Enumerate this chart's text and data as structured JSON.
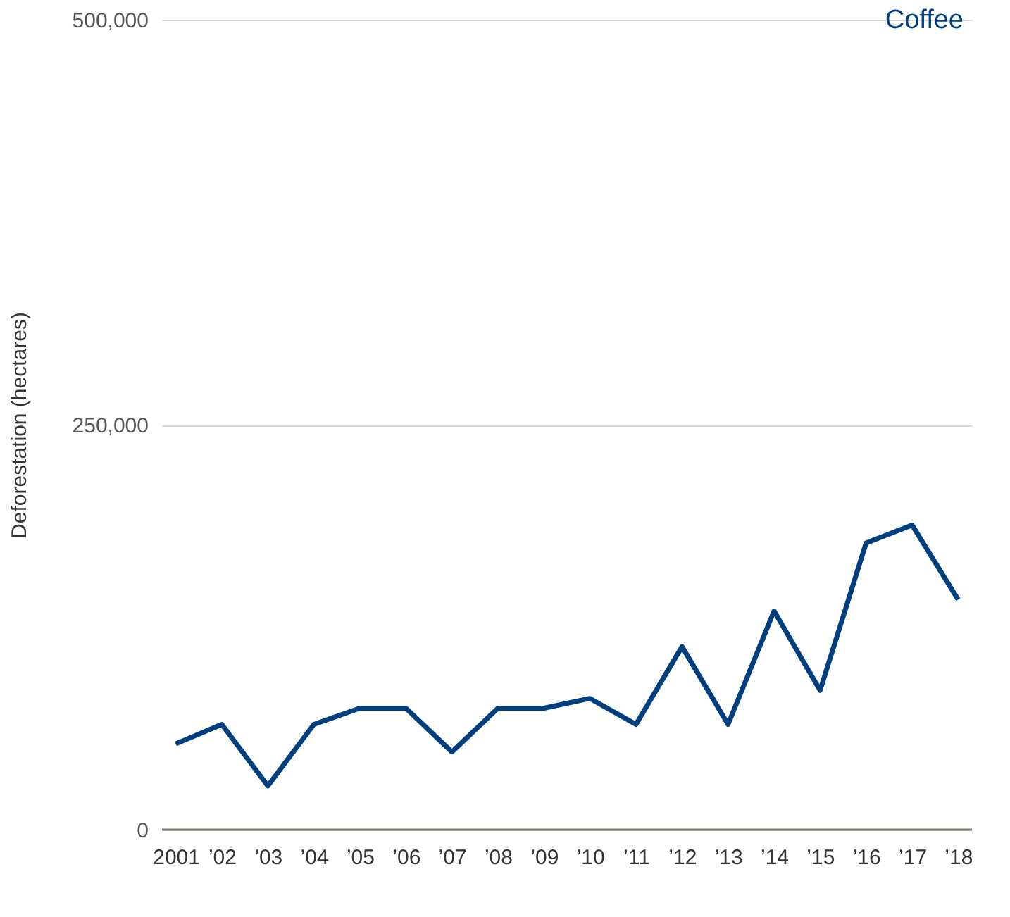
{
  "chart_data": {
    "type": "line",
    "ylabel": "Deforestation (hectares)",
    "categories": [
      "2001",
      "’02",
      "’03",
      "’04",
      "’05",
      "’06",
      "’07",
      "’08",
      "’09",
      "’10",
      "’11",
      "’12",
      "’13",
      "’14",
      "’15",
      "’16",
      "’17",
      "’18"
    ],
    "series": [
      {
        "name": "Coffee",
        "color": "#003f7d",
        "values": [
          53000,
          65000,
          27000,
          65000,
          75000,
          75000,
          48000,
          75000,
          75000,
          81000,
          65000,
          113000,
          65000,
          135000,
          86000,
          177000,
          188000,
          142000
        ]
      }
    ],
    "ylim": [
      0,
      500000
    ],
    "yticks": [
      0,
      {
        "value": 250000,
        "label": "250,000"
      },
      {
        "value": 500000,
        "label": "500,000"
      }
    ],
    "grid": "y",
    "legend": "top right",
    "marker": "none",
    "line_style": "solid"
  }
}
